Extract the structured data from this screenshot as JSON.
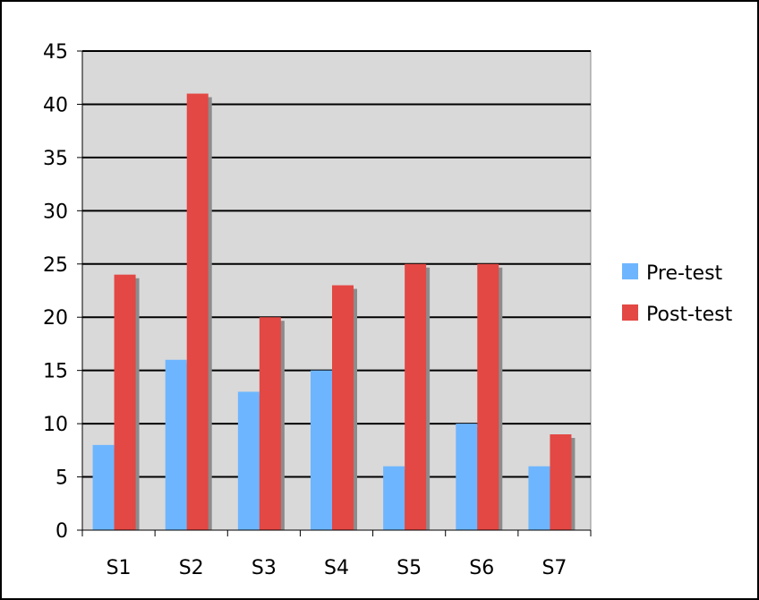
{
  "chart_data": {
    "type": "bar",
    "title": "",
    "xlabel": "",
    "ylabel": "",
    "categories": [
      "S1",
      "S2",
      "S3",
      "S4",
      "S5",
      "S6",
      "S7"
    ],
    "series": [
      {
        "name": "Pre-test",
        "values": [
          8,
          16,
          13,
          15,
          6,
          10,
          6
        ],
        "color": "#6db6ff"
      },
      {
        "name": "Post-test",
        "values": [
          24,
          41,
          20,
          23,
          25,
          25,
          9
        ],
        "color": "#e34844"
      }
    ],
    "ylim": [
      0,
      45
    ],
    "yticks": [
      "0",
      "5",
      "10",
      "15",
      "20",
      "25",
      "30",
      "35",
      "40",
      "45"
    ],
    "grid": true,
    "plot_background": "#d9d9d9",
    "shadow_color": "#8c8c8c",
    "legend_position": "right"
  }
}
